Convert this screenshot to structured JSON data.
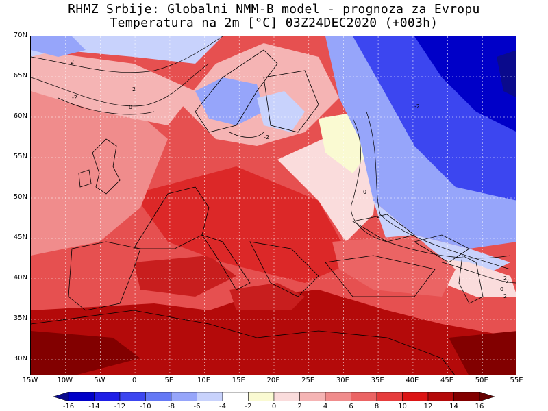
{
  "title_line1": "RHMZ Srbije: Globalni NMM-B model - prognoza za Evropu",
  "title_line2": "Temperatura na 2m [°C] 03Z24DEC2020 (+003h)",
  "map": {
    "lon_range": [
      -15,
      55
    ],
    "lat_range": [
      28,
      70
    ],
    "lon_ticks": [
      "15W",
      "10W",
      "5W",
      "0",
      "5E",
      "10E",
      "15E",
      "20E",
      "25E",
      "30E",
      "35E",
      "40E",
      "45E",
      "50E",
      "55E"
    ],
    "lat_ticks": [
      "70N",
      "65N",
      "60N",
      "55N",
      "50N",
      "45N",
      "40N",
      "35N",
      "30N"
    ],
    "contour_labels": [
      "2",
      "2",
      "0",
      "-2",
      "-2",
      "0",
      "2",
      "-2",
      "0",
      "2",
      "2",
      "-2"
    ]
  },
  "colorbar": {
    "labels": [
      "-16",
      "-14",
      "-12",
      "-10",
      "-8",
      "-6",
      "-4",
      "-2",
      "0",
      "2",
      "4",
      "6",
      "8",
      "10",
      "12",
      "14",
      "16"
    ],
    "colors": [
      "#0a0a8c",
      "#0000c8",
      "#1e1ee6",
      "#3c46f0",
      "#6478f5",
      "#96a5fa",
      "#c8d2fc",
      "#ffffff",
      "#fafad2",
      "#fadcdc",
      "#f5b4b4",
      "#f08c8c",
      "#eb6464",
      "#e63c3c",
      "#dc1414",
      "#b40a0a",
      "#820000",
      "#640000"
    ]
  }
}
